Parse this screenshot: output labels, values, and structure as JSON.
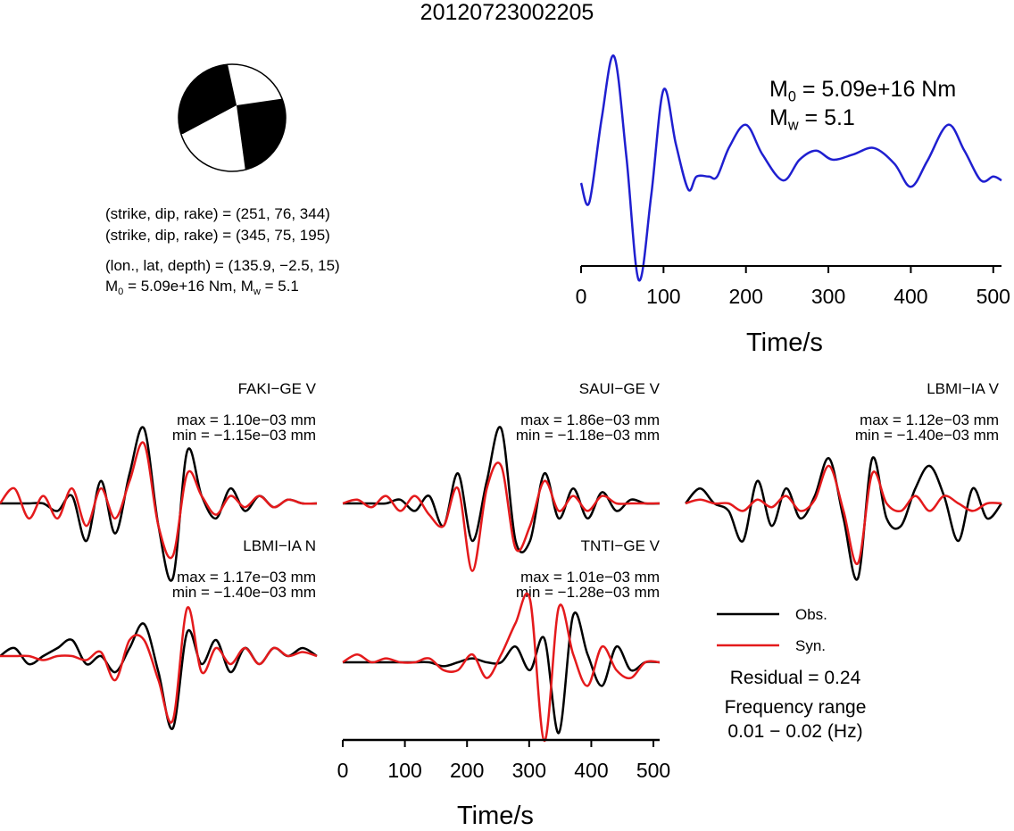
{
  "title": "20120723002205",
  "focal": {
    "line1": "(strike, dip, rake) = (251, 76, 344)",
    "line2": "(strike, dip, rake) = (345, 75, 195)",
    "line3": "(lon., lat, depth) = (135.9, −2.5, 15)",
    "line4_m0": "= 5.09e+16 Nm, M",
    "line4_mw": "= 5.1",
    "m_letter": "M",
    "sub0": "0",
    "subw": "w"
  },
  "stf": {
    "m0_text": "= 5.09e+16 Nm",
    "mw_text": "= 5.1",
    "xlabel": "Time/s",
    "ticks": [
      "0",
      "100",
      "200",
      "300",
      "400",
      "500"
    ]
  },
  "traces": [
    {
      "title": "FAKI−GE V",
      "max": "max = 1.10e−03 mm",
      "min": "min = −1.15e−03 mm"
    },
    {
      "title": "SAUI−GE V",
      "max": "max = 1.86e−03 mm",
      "min": "min = −1.18e−03 mm"
    },
    {
      "title": "LBMI−IA V",
      "max": "max = 1.12e−03 mm",
      "min": "min = −1.40e−03 mm"
    },
    {
      "title": "LBMI−IA N",
      "max": "max = 1.17e−03 mm",
      "min": "min = −1.40e−03 mm"
    },
    {
      "title": "TNTI−GE V",
      "max": "max = 1.01e−03 mm",
      "min": "min = −1.28e−03 mm"
    }
  ],
  "bottom_axis": {
    "xlabel": "Time/s",
    "ticks": [
      "0",
      "100",
      "200",
      "300",
      "400",
      "500"
    ]
  },
  "legend": {
    "obs": "Obs.",
    "syn": "Syn.",
    "residual": "Residual = 0.24",
    "freq1": "Frequency range",
    "freq2": "0.01 − 0.02 (Hz)"
  },
  "colors": {
    "obs": "#000000",
    "syn": "#e41a1c",
    "stf": "#1f1fd0"
  },
  "chart_data": [
    {
      "type": "line",
      "title": "",
      "xlabel": "Time/s",
      "xlim": [
        0,
        510
      ],
      "series": [
        {
          "name": "",
          "x": [
            0,
            10,
            25,
            40,
            55,
            70,
            85,
            100,
            115,
            130,
            140,
            155,
            165,
            180,
            200,
            220,
            245,
            265,
            285,
            305,
            330,
            355,
            380,
            400,
            420,
            445,
            465,
            485,
            500,
            510
          ],
          "y": [
            0.0,
            -0.15,
            0.5,
            0.98,
            0.2,
            -0.75,
            -0.1,
            0.72,
            0.3,
            -0.05,
            0.05,
            0.05,
            0.05,
            0.28,
            0.45,
            0.22,
            0.02,
            0.18,
            0.25,
            0.18,
            0.22,
            0.27,
            0.15,
            -0.03,
            0.17,
            0.45,
            0.25,
            0.02,
            0.05,
            0.02
          ]
        }
      ]
    },
    {
      "type": "line",
      "title": "FAKI−GE V",
      "series": [
        {
          "name": "Obs.",
          "values": [
            0,
            0,
            0,
            0,
            -0.1,
            0.1,
            -0.5,
            0.3,
            -0.4,
            0.4,
            1.0,
            -0.3,
            -1.0,
            0.7,
            0.1,
            -0.2,
            0.2,
            -0.1,
            0.1,
            -0.05,
            0.05,
            0,
            0
          ]
        },
        {
          "name": "Syn.",
          "values": [
            0,
            0.2,
            -0.2,
            0.1,
            -0.2,
            0.2,
            -0.3,
            0.2,
            -0.2,
            0.3,
            0.8,
            -0.3,
            -0.7,
            0.4,
            0.1,
            -0.15,
            0.1,
            -0.05,
            0.1,
            -0.05,
            0.05,
            0,
            0
          ]
        }
      ]
    },
    {
      "type": "line",
      "title": "SAUI−GE V",
      "series": [
        {
          "name": "Obs.",
          "values": [
            0,
            0,
            0,
            0,
            0.05,
            -0.1,
            0.1,
            -0.3,
            0.4,
            -0.5,
            0.3,
            1.0,
            -0.5,
            -0.5,
            0.4,
            -0.2,
            0.2,
            -0.2,
            0.15,
            -0.1,
            0.05,
            0,
            0
          ]
        },
        {
          "name": "Syn.",
          "values": [
            0,
            0.05,
            -0.05,
            0.1,
            -0.1,
            0.1,
            -0.15,
            -0.3,
            0.2,
            -0.9,
            0.2,
            0.5,
            -0.6,
            -0.3,
            0.3,
            -0.1,
            0.1,
            -0.1,
            0.1,
            0,
            0,
            0,
            0
          ]
        }
      ]
    },
    {
      "type": "line",
      "title": "LBMI−IA V",
      "series": [
        {
          "name": "Obs.",
          "values": [
            0,
            0.2,
            0,
            -0.1,
            -0.5,
            0.3,
            -0.3,
            0.2,
            -0.2,
            0.1,
            0.6,
            -0.2,
            -1.0,
            0.6,
            -0.2,
            -0.3,
            0.2,
            0.5,
            0.1,
            -0.5,
            0.2,
            -0.2,
            0
          ]
        },
        {
          "name": "Syn.",
          "values": [
            0,
            0.05,
            0,
            0,
            -0.1,
            0.05,
            -0.05,
            0.1,
            -0.1,
            0.05,
            0.5,
            -0.1,
            -0.8,
            0.4,
            0,
            -0.1,
            0.1,
            -0.1,
            0.1,
            0,
            -0.1,
            0,
            0
          ]
        }
      ]
    },
    {
      "type": "line",
      "title": "LBMI−IA N",
      "series": [
        {
          "name": "Obs.",
          "values": [
            0,
            0.1,
            -0.1,
            0,
            0.1,
            0.2,
            -0.1,
            0,
            -0.2,
            0.1,
            0.4,
            -0.2,
            -0.9,
            0.3,
            -0.1,
            0.2,
            -0.2,
            0.1,
            -0.1,
            0.1,
            0,
            0.1,
            0
          ]
        },
        {
          "name": "Syn.",
          "values": [
            0,
            0,
            0,
            -0.05,
            0,
            0,
            -0.05,
            0.05,
            -0.3,
            0.2,
            0.2,
            -0.3,
            -0.8,
            0.6,
            -0.2,
            0.1,
            -0.1,
            0.1,
            -0.1,
            0.1,
            0,
            0.05,
            0
          ]
        }
      ]
    },
    {
      "type": "line",
      "title": "TNTI−GE V",
      "series": [
        {
          "name": "Obs.",
          "values": [
            0,
            0,
            0,
            0,
            0,
            0,
            0,
            -0.05,
            0,
            0.05,
            0,
            0,
            0.2,
            -0.1,
            0.3,
            -0.9,
            0.6,
            0.1,
            -0.3,
            0.2,
            -0.1,
            0,
            0
          ]
        },
        {
          "name": "Syn.",
          "values": [
            0,
            0.1,
            0,
            0.05,
            0,
            0,
            0.05,
            -0.1,
            -0.1,
            0.1,
            -0.2,
            0.1,
            0.5,
            0.8,
            -1.0,
            0.7,
            0.1,
            -0.3,
            0.2,
            -0.1,
            -0.2,
            0,
            0
          ]
        }
      ]
    }
  ]
}
